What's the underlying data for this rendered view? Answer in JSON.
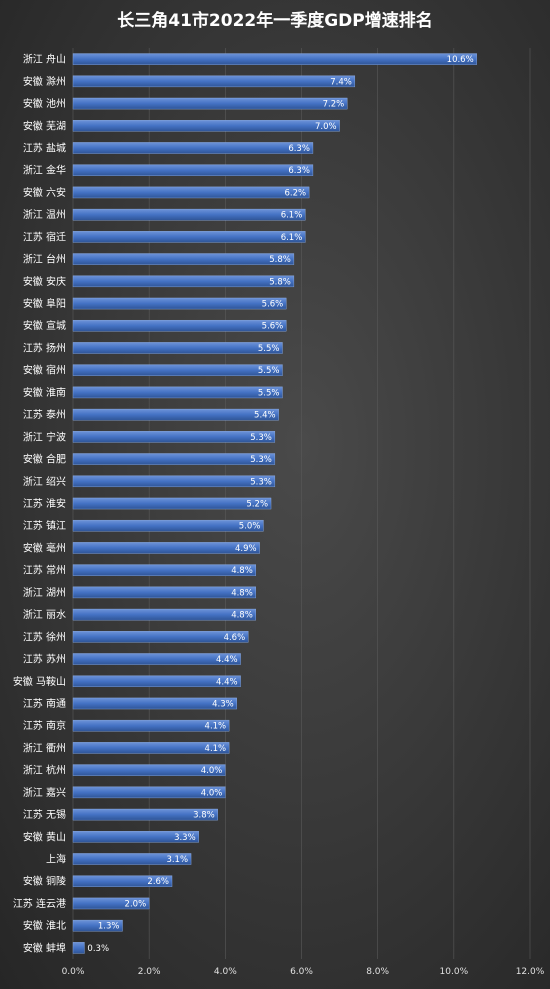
{
  "chart_data": {
    "type": "bar",
    "orientation": "horizontal",
    "title": "长三角41市2022年一季度GDP增速排名",
    "xlabel": "",
    "ylabel": "",
    "xlim": [
      0,
      12
    ],
    "x_ticks": [
      "0.0%",
      "2.0%",
      "4.0%",
      "6.0%",
      "8.0%",
      "10.0%",
      "12.0%"
    ],
    "grid": true,
    "legend": "none",
    "bar_color": "#4472c4",
    "categories": [
      "浙江 舟山",
      "安徽 滁州",
      "安徽 池州",
      "安徽 芜湖",
      "江苏 盐城",
      "浙江 金华",
      "安徽 六安",
      "浙江 温州",
      "江苏 宿迁",
      "浙江 台州",
      "安徽 安庆",
      "安徽 阜阳",
      "安徽 宣城",
      "江苏 扬州",
      "安徽 宿州",
      "安徽 淮南",
      "江苏 泰州",
      "浙江 宁波",
      "安徽 合肥",
      "浙江 绍兴",
      "江苏 淮安",
      "江苏 镇江",
      "安徽 亳州",
      "江苏 常州",
      "浙江 湖州",
      "浙江 丽水",
      "江苏 徐州",
      "江苏 苏州",
      "安徽 马鞍山",
      "江苏 南通",
      "江苏 南京",
      "浙江 衢州",
      "浙江 杭州",
      "浙江 嘉兴",
      "江苏 无锡",
      "安徽 黄山",
      "上海",
      "安徽 铜陵",
      "江苏 连云港",
      "安徽 淮北",
      "安徽 蚌埠"
    ],
    "values": [
      10.6,
      7.4,
      7.2,
      7.0,
      6.3,
      6.3,
      6.2,
      6.1,
      6.1,
      5.8,
      5.8,
      5.6,
      5.6,
      5.5,
      5.5,
      5.5,
      5.4,
      5.3,
      5.3,
      5.3,
      5.2,
      5.0,
      4.9,
      4.8,
      4.8,
      4.8,
      4.6,
      4.4,
      4.4,
      4.3,
      4.1,
      4.1,
      4.0,
      4.0,
      3.8,
      3.3,
      3.1,
      2.6,
      2.0,
      1.3,
      0.3
    ],
    "data_labels": [
      "10.6%",
      "7.4%",
      "7.2%",
      "7.0%",
      "6.3%",
      "6.3%",
      "6.2%",
      "6.1%",
      "6.1%",
      "5.8%",
      "5.8%",
      "5.6%",
      "5.6%",
      "5.5%",
      "5.5%",
      "5.5%",
      "5.4%",
      "5.3%",
      "5.3%",
      "5.3%",
      "5.2%",
      "5.0%",
      "4.9%",
      "4.8%",
      "4.8%",
      "4.8%",
      "4.6%",
      "4.4%",
      "4.4%",
      "4.3%",
      "4.1%",
      "4.1%",
      "4.0%",
      "4.0%",
      "3.8%",
      "3.3%",
      "3.1%",
      "2.6%",
      "2.0%",
      "1.3%",
      "0.3%"
    ]
  }
}
